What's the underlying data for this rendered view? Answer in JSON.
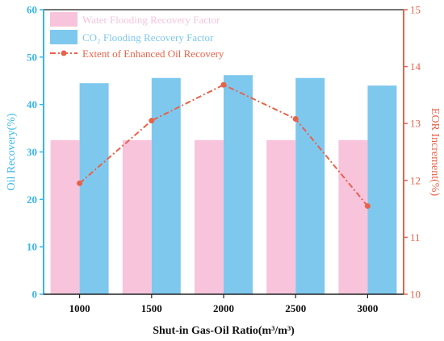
{
  "chart_data": {
    "type": "bar",
    "categories": [
      "1000",
      "1500",
      "2000",
      "2500",
      "3000"
    ],
    "xlabel": "Shut-in Gas-Oil Ratio(m³/m³)",
    "ylabel": "Oil Recovery(%)",
    "y2label": "EOR Increment(%)",
    "ylim": [
      0,
      60
    ],
    "y2lim": [
      10,
      15
    ],
    "yticks": [
      0,
      10,
      20,
      30,
      40,
      50,
      60
    ],
    "y2ticks": [
      10,
      11,
      12,
      13,
      14,
      15
    ],
    "grid": false,
    "legend_position": "top-left",
    "series": [
      {
        "name": "Water Flooding Recovery Factor",
        "type": "bar",
        "axis": "left",
        "color": "#f7c4dc",
        "values": [
          32.5,
          32.5,
          32.5,
          32.5,
          32.5
        ]
      },
      {
        "name": "CO₂ Flooding Recovery Factor",
        "type": "bar",
        "axis": "left",
        "color": "#7ec8ee",
        "values": [
          44.5,
          45.6,
          46.2,
          45.6,
          44.0
        ]
      },
      {
        "name": "Extent of Enhanced Oil Recovery",
        "type": "line",
        "axis": "right",
        "color": "#e8624a",
        "values": [
          11.95,
          13.05,
          13.68,
          13.08,
          11.55
        ]
      }
    ],
    "left_axis_color": "#38b6e8",
    "right_axis_color": "#e8624a"
  }
}
